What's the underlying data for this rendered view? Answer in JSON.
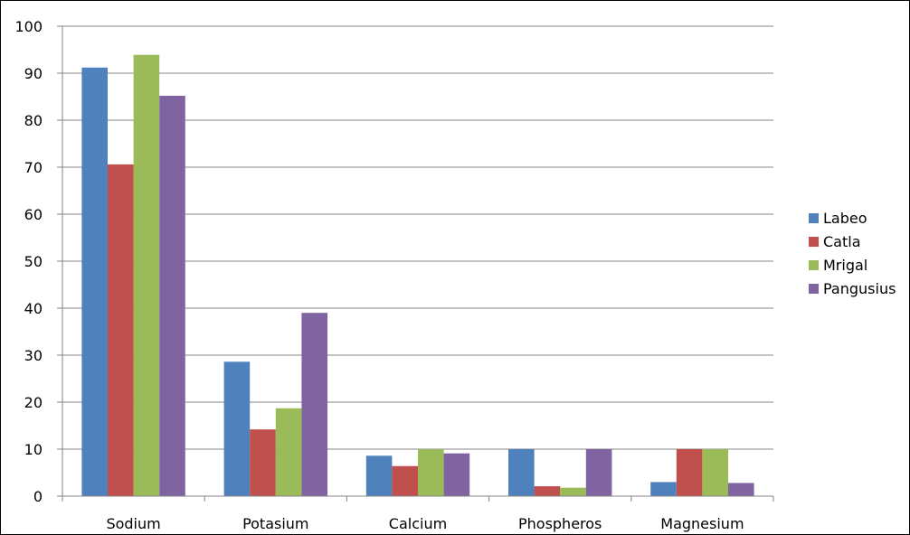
{
  "chart_data": {
    "type": "bar",
    "categories": [
      "Sodium",
      "Potasium",
      "Calcium",
      "Phospheros",
      "Magnesium"
    ],
    "series": [
      {
        "name": "Labeo",
        "color": "#4F81BD",
        "values": [
          91.2,
          28.6,
          8.6,
          10.0,
          3.0
        ]
      },
      {
        "name": "Catla",
        "color": "#C0504D",
        "values": [
          70.6,
          14.2,
          6.4,
          2.1,
          10.0
        ]
      },
      {
        "name": "Mrigal",
        "color": "#9BBB59",
        "values": [
          93.9,
          18.7,
          10.0,
          1.8,
          10.0
        ]
      },
      {
        "name": "Pangusius",
        "color": "#8064A2",
        "values": [
          85.2,
          39.0,
          9.1,
          10.0,
          2.8
        ]
      }
    ],
    "yticks": [
      0,
      10,
      20,
      30,
      40,
      50,
      60,
      70,
      80,
      90,
      100
    ],
    "ylim": [
      0,
      100
    ],
    "grid": true,
    "legend_position": "right",
    "title": "",
    "xlabel": "",
    "ylabel": ""
  }
}
